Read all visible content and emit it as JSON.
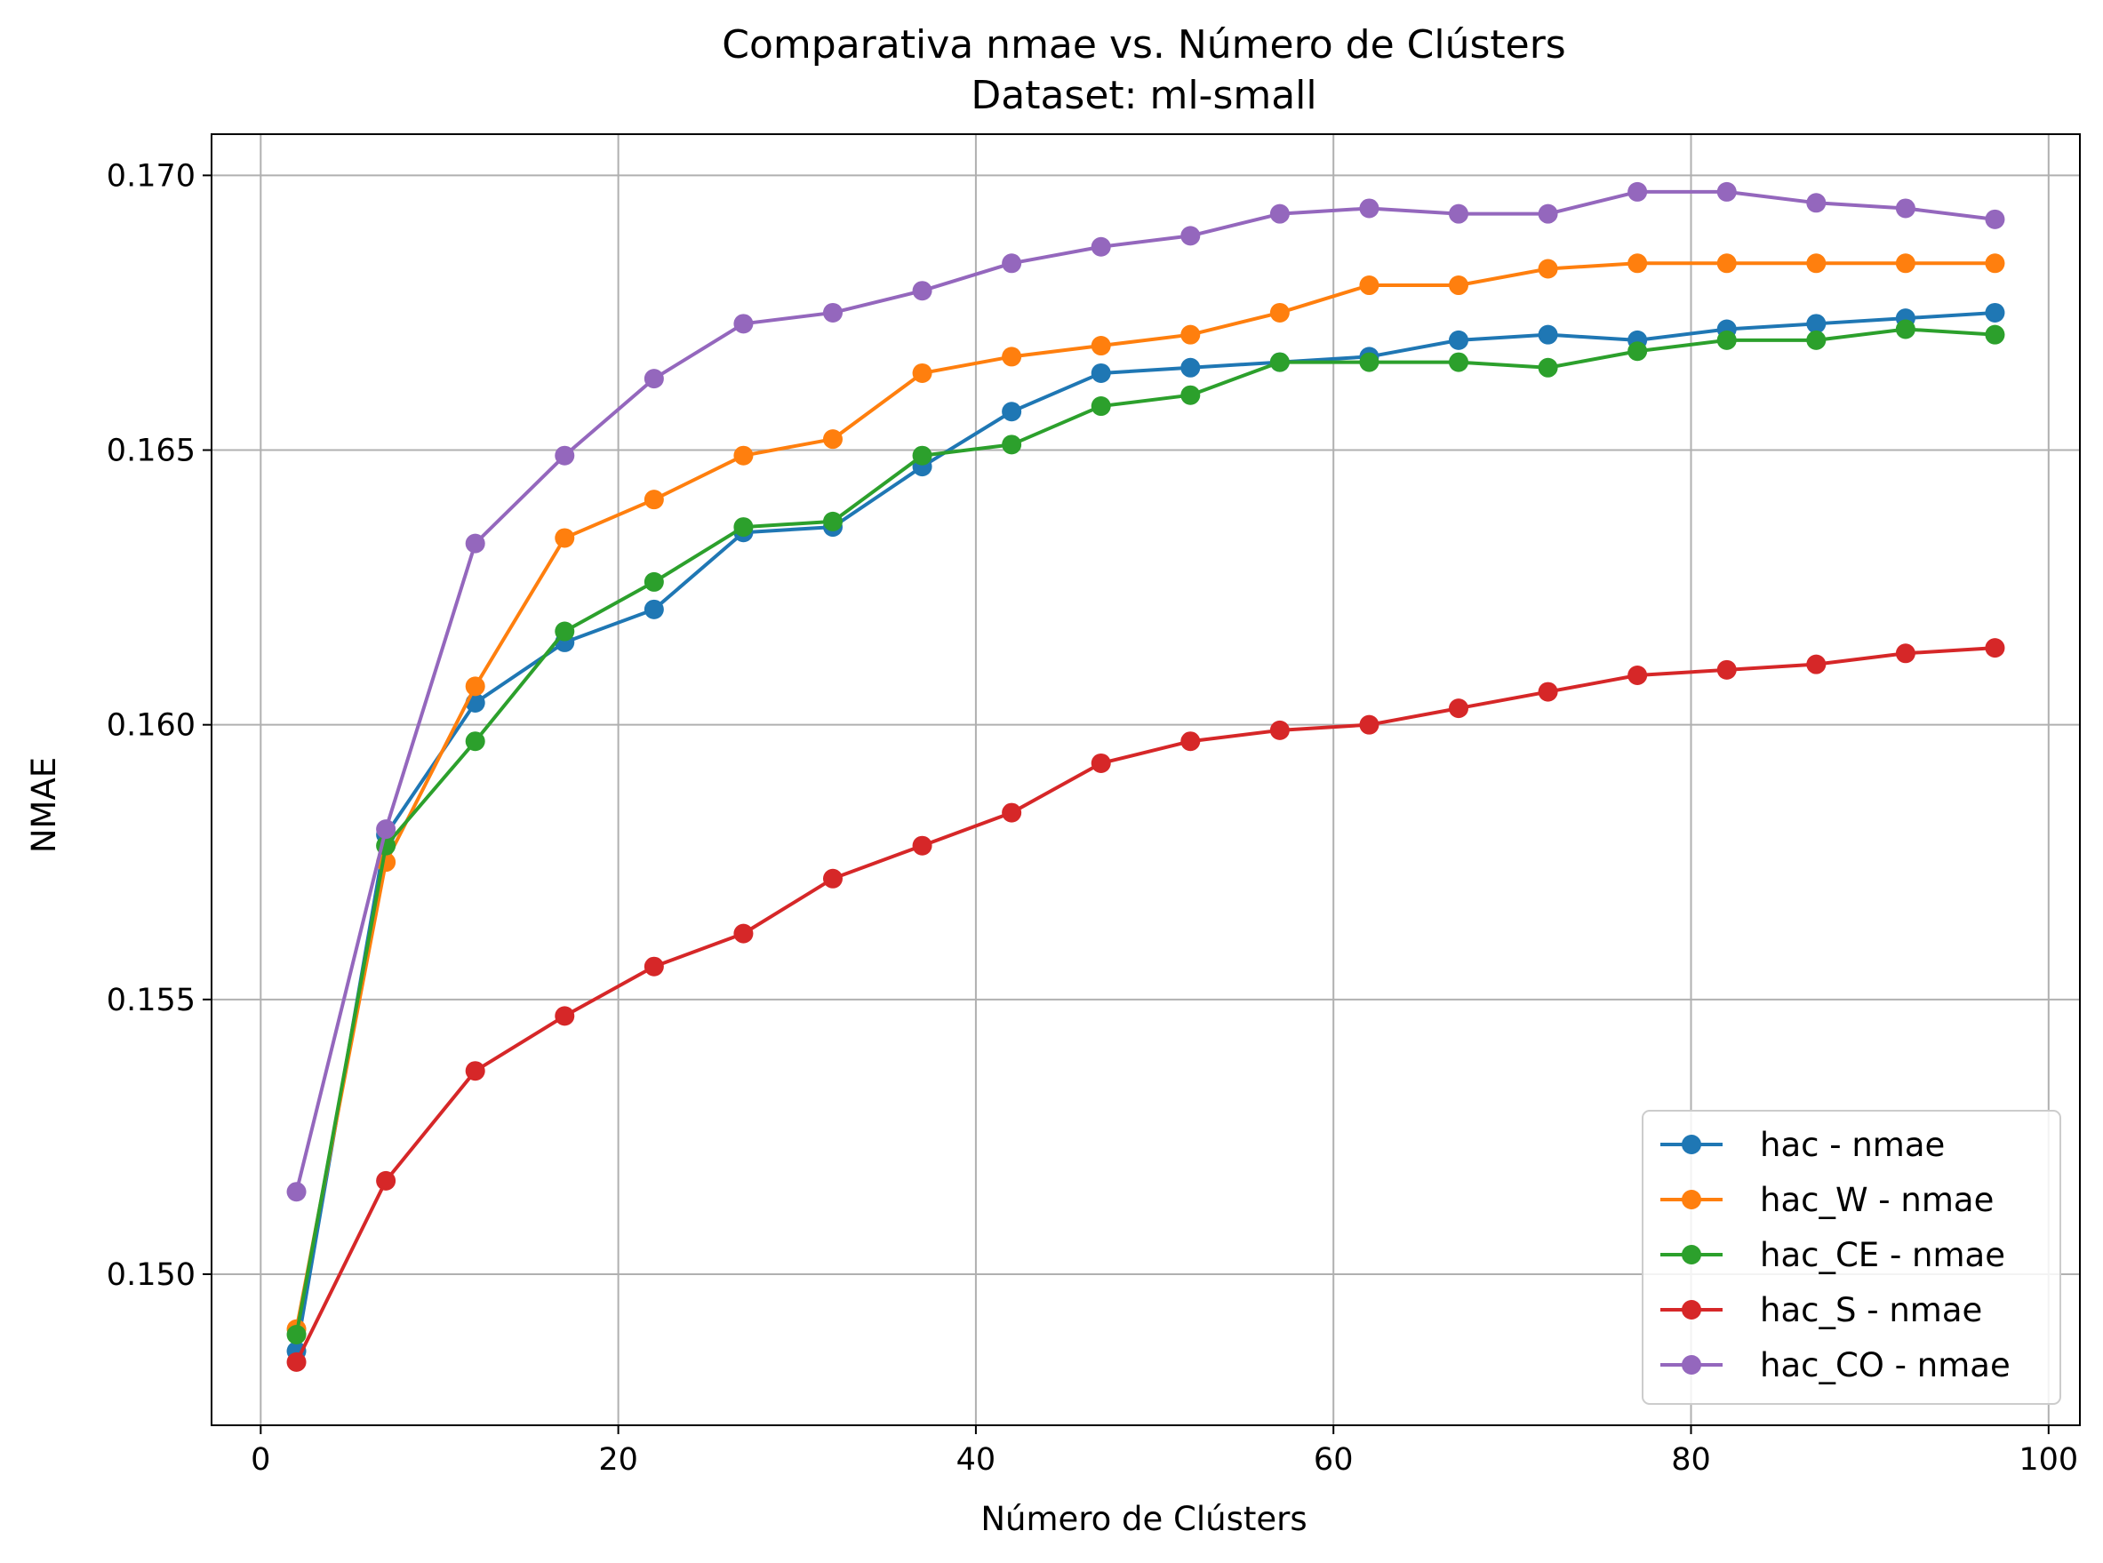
{
  "chart_data": {
    "type": "line",
    "title": "Comparativa nmae vs. Número de Clústers",
    "subtitle": "Dataset: ml-small",
    "xlabel": "Número de Clústers",
    "ylabel": "NMAE",
    "xlim": [
      -2.75,
      101.75
    ],
    "ylim": [
      0.14725,
      0.17075
    ],
    "x_ticks": [
      0,
      20,
      40,
      60,
      80,
      100
    ],
    "x_tick_labels": [
      "0",
      "20",
      "40",
      "60",
      "80",
      "100"
    ],
    "y_ticks": [
      0.15,
      0.155,
      0.16,
      0.165,
      0.17
    ],
    "y_tick_labels": [
      "0.150",
      "0.155",
      "0.160",
      "0.165",
      "0.170"
    ],
    "grid": true,
    "legend_position": "lower-right",
    "x": [
      2,
      7,
      12,
      17,
      22,
      27,
      32,
      37,
      42,
      47,
      52,
      57,
      62,
      67,
      72,
      77,
      82,
      87,
      92,
      97
    ],
    "series": [
      {
        "name": "hac - nmae",
        "color": "#1f77b4",
        "values": [
          0.1486,
          0.158,
          0.1604,
          0.1615,
          0.1621,
          0.1635,
          0.1636,
          0.1647,
          0.1657,
          0.1664,
          0.1665,
          0.1666,
          0.1667,
          0.167,
          0.1671,
          0.167,
          0.1672,
          0.1673,
          0.1674,
          0.1675
        ]
      },
      {
        "name": "hac_W - nmae",
        "color": "#ff7f0e",
        "values": [
          0.149,
          0.1575,
          0.1607,
          0.1634,
          0.1641,
          0.1649,
          0.1652,
          0.1664,
          0.1667,
          0.1669,
          0.1671,
          0.1675,
          0.168,
          0.168,
          0.1683,
          0.1684,
          0.1684,
          0.1684,
          0.1684,
          0.1684
        ]
      },
      {
        "name": "hac_CE - nmae",
        "color": "#2ca02c",
        "values": [
          0.1489,
          0.1578,
          0.1597,
          0.1617,
          0.1626,
          0.1636,
          0.1637,
          0.1649,
          0.1651,
          0.1658,
          0.166,
          0.1666,
          0.1666,
          0.1666,
          0.1665,
          0.1668,
          0.167,
          0.167,
          0.1672,
          0.1671
        ]
      },
      {
        "name": "hac_S - nmae",
        "color": "#d62728",
        "values": [
          0.1484,
          0.1517,
          0.1537,
          0.1547,
          0.1556,
          0.1562,
          0.1572,
          0.1578,
          0.1584,
          0.1593,
          0.1597,
          0.1599,
          0.16,
          0.1603,
          0.1606,
          0.1609,
          0.161,
          0.1611,
          0.1613,
          0.1614
        ]
      },
      {
        "name": "hac_CO - nmae",
        "color": "#9467bd",
        "values": [
          0.1515,
          0.1581,
          0.1633,
          0.1649,
          0.1663,
          0.1673,
          0.1675,
          0.1679,
          0.1684,
          0.1687,
          0.1689,
          0.1693,
          0.1694,
          0.1693,
          0.1693,
          0.1697,
          0.1697,
          0.1695,
          0.1694,
          0.1692
        ]
      }
    ]
  }
}
